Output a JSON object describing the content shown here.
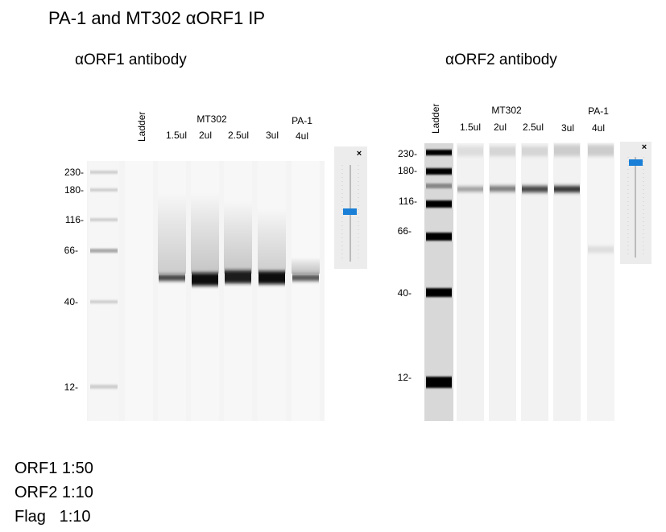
{
  "title": "PA-1 and MT302 αORF1 IP",
  "panels": [
    {
      "heading": "αORF1 antibody",
      "ladder_label": "Ladder",
      "group_label": "MT302",
      "lanes": [
        "1.5ul",
        "2ul",
        "2.5ul",
        "3ul"
      ],
      "extra_group_label": "PA-1",
      "extra_lane": "4ul",
      "markers": [
        "230-",
        "180-",
        "116-",
        "66-",
        "40-",
        "12-"
      ]
    },
    {
      "heading": "αORF2 antibody",
      "ladder_label": "Ladder",
      "group_label": "MT302",
      "lanes": [
        "1.5ul",
        "2ul",
        "2.5ul",
        "3ul"
      ],
      "extra_group_label": "PA-1",
      "extra_lane": "4ul",
      "markers": [
        "230-",
        "180-",
        "116-",
        "66-",
        "40-",
        "12-"
      ]
    }
  ],
  "notes": [
    "ORF1 1:50",
    "ORF2 1:10",
    "Flag   1:10"
  ]
}
